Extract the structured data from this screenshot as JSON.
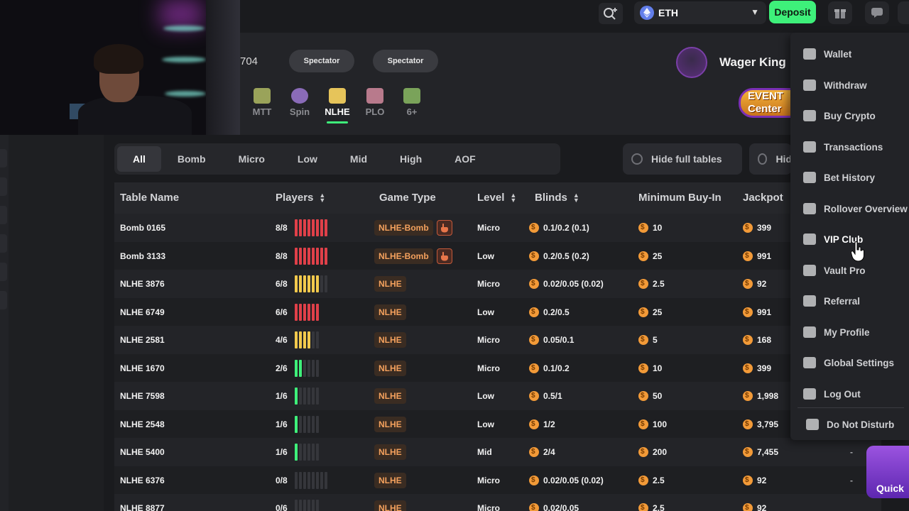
{
  "header": {
    "table_id_fragment": "704",
    "spectator_labels": [
      "Spectator",
      "Spectator"
    ],
    "game_tabs": [
      {
        "label": "MTT",
        "icon": "trophy-icon",
        "color": "#9aa35a"
      },
      {
        "label": "Spin",
        "icon": "spin-icon",
        "color": "#8a6bb8"
      },
      {
        "label": "NLHE",
        "icon": "cards-icon",
        "color": "#e6c45a",
        "active": true
      },
      {
        "label": "PLO",
        "icon": "plo-cards-icon",
        "color": "#b87a8c"
      },
      {
        "label": "6+",
        "icon": "six-plus-icon",
        "color": "#7aa35a"
      }
    ],
    "username": "Wager King",
    "event_banner": [
      "EVENT",
      "Center"
    ]
  },
  "topbar": {
    "currency": "ETH",
    "deposit_label": "Deposit"
  },
  "filters": {
    "chips": [
      "All",
      "Bomb",
      "Micro",
      "Low",
      "Mid",
      "High",
      "AOF"
    ],
    "active": "All",
    "hide_full_tables": "Hide full tables",
    "hide_truncated": "Hid"
  },
  "table": {
    "columns": [
      "Table Name",
      "Players",
      "Game Type",
      "Level",
      "Blinds",
      "Minimum Buy-In",
      "Jackpot"
    ],
    "rows": [
      {
        "name": "Bomb 0165",
        "players": "8/8",
        "seated": 8,
        "max": 8,
        "type": "NLHE-Bomb",
        "bomb": true,
        "level": "Micro",
        "blinds": "0.1/0.2 (0.1)",
        "buyin": "10",
        "jackpot": "399",
        "extra": ""
      },
      {
        "name": "Bomb 3133",
        "players": "8/8",
        "seated": 8,
        "max": 8,
        "type": "NLHE-Bomb",
        "bomb": true,
        "level": "Low",
        "blinds": "0.2/0.5 (0.2)",
        "buyin": "25",
        "jackpot": "991",
        "extra": ""
      },
      {
        "name": "NLHE 3876",
        "players": "6/8",
        "seated": 6,
        "max": 8,
        "type": "NLHE",
        "bomb": false,
        "level": "Micro",
        "blinds": "0.02/0.05 (0.02)",
        "buyin": "2.5",
        "jackpot": "92",
        "extra": ""
      },
      {
        "name": "NLHE 6749",
        "players": "6/6",
        "seated": 6,
        "max": 6,
        "type": "NLHE",
        "bomb": false,
        "level": "Low",
        "blinds": "0.2/0.5",
        "buyin": "25",
        "jackpot": "991",
        "extra": ""
      },
      {
        "name": "NLHE 2581",
        "players": "4/6",
        "seated": 4,
        "max": 6,
        "type": "NLHE",
        "bomb": false,
        "level": "Micro",
        "blinds": "0.05/0.1",
        "buyin": "5",
        "jackpot": "168",
        "extra": ""
      },
      {
        "name": "NLHE 1670",
        "players": "2/6",
        "seated": 2,
        "max": 6,
        "type": "NLHE",
        "bomb": false,
        "level": "Micro",
        "blinds": "0.1/0.2",
        "buyin": "10",
        "jackpot": "399",
        "extra": ""
      },
      {
        "name": "NLHE 7598",
        "players": "1/6",
        "seated": 1,
        "max": 6,
        "type": "NLHE",
        "bomb": false,
        "level": "Low",
        "blinds": "0.5/1",
        "buyin": "50",
        "jackpot": "1,998",
        "extra": ""
      },
      {
        "name": "NLHE 2548",
        "players": "1/6",
        "seated": 1,
        "max": 6,
        "type": "NLHE",
        "bomb": false,
        "level": "Low",
        "blinds": "1/2",
        "buyin": "100",
        "jackpot": "3,795",
        "extra": ""
      },
      {
        "name": "NLHE 5400",
        "players": "1/6",
        "seated": 1,
        "max": 6,
        "type": "NLHE",
        "bomb": false,
        "level": "Mid",
        "blinds": "2/4",
        "buyin": "200",
        "jackpot": "7,455",
        "extra": "-"
      },
      {
        "name": "NLHE 6376",
        "players": "0/8",
        "seated": 0,
        "max": 8,
        "type": "NLHE",
        "bomb": false,
        "level": "Micro",
        "blinds": "0.02/0.05 (0.02)",
        "buyin": "2.5",
        "jackpot": "92",
        "extra": "-"
      },
      {
        "name": "NLHE 8877",
        "players": "0/6",
        "seated": 0,
        "max": 6,
        "type": "NLHE",
        "bomb": false,
        "level": "Micro",
        "blinds": "0.02/0.05",
        "buyin": "2.5",
        "jackpot": "92",
        "extra": ""
      }
    ]
  },
  "user_menu": {
    "items": [
      {
        "label": "Wallet",
        "icon": "wallet-icon"
      },
      {
        "label": "Withdraw",
        "icon": "withdraw-icon"
      },
      {
        "label": "Buy Crypto",
        "icon": "buy-crypto-icon"
      },
      {
        "label": "Transactions",
        "icon": "transactions-icon"
      },
      {
        "label": "Bet History",
        "icon": "bet-history-icon"
      },
      {
        "label": "Rollover Overview",
        "icon": "rollover-chart-icon"
      },
      {
        "label": "VIP Club",
        "icon": "crown-icon",
        "active": true
      },
      {
        "label": "Vault Pro",
        "icon": "vault-icon"
      },
      {
        "label": "Referral",
        "icon": "referral-icon"
      },
      {
        "label": "My Profile",
        "icon": "profile-icon"
      },
      {
        "label": "Global Settings",
        "icon": "settings-icon"
      },
      {
        "label": "Log Out",
        "icon": "logout-icon"
      },
      {
        "label": "Do Not Disturb",
        "icon": "do-not-disturb-icon"
      }
    ]
  },
  "quick_button": "Quick",
  "colors": {
    "accent_green": "#3ef07a",
    "full_red": "#e04049",
    "partial_yellow": "#f2c94c",
    "game_type_orange": "#f4a15d",
    "coin_orange": "#f29a38"
  }
}
